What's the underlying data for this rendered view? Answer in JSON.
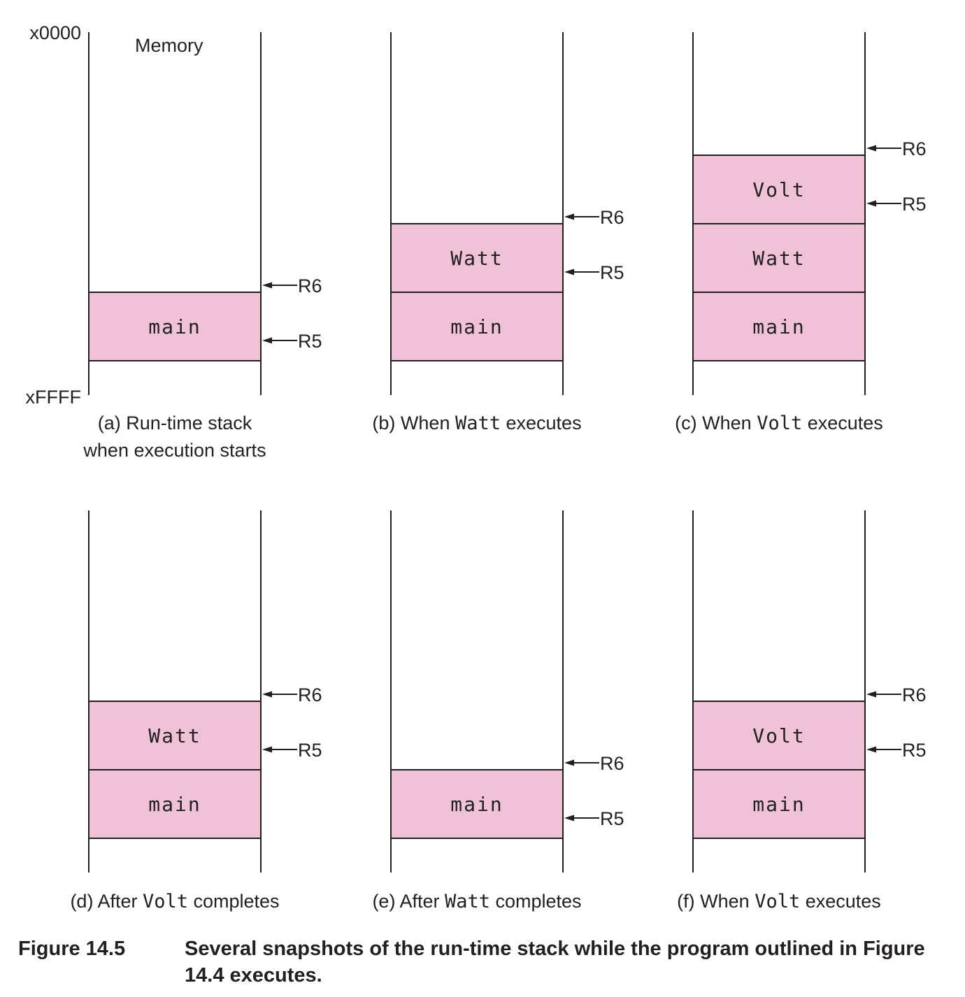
{
  "axis": {
    "top_address": "x0000",
    "bottom_address": "xFFFF",
    "memory_label": "Memory"
  },
  "colors": {
    "frame_fill": "#f0c2d8",
    "stroke": "#231f20"
  },
  "registers": {
    "stack_pointer": "R6",
    "frame_pointer": "R5"
  },
  "snapshots": [
    {
      "id": "a",
      "caption_lines": [
        [
          {
            "text": "(a) Run-time stack",
            "mono": false
          }
        ],
        [
          {
            "text": "when execution starts",
            "mono": false
          }
        ]
      ],
      "frames_bottom_to_top": [
        "main"
      ]
    },
    {
      "id": "b",
      "caption_lines": [
        [
          {
            "text": "(b) When ",
            "mono": false
          },
          {
            "text": "Watt",
            "mono": true
          },
          {
            "text": " executes",
            "mono": false
          }
        ]
      ],
      "frames_bottom_to_top": [
        "main",
        "Watt"
      ]
    },
    {
      "id": "c",
      "caption_lines": [
        [
          {
            "text": "(c) When ",
            "mono": false
          },
          {
            "text": "Volt",
            "mono": true
          },
          {
            "text": " executes",
            "mono": false
          }
        ]
      ],
      "frames_bottom_to_top": [
        "main",
        "Watt",
        "Volt"
      ]
    },
    {
      "id": "d",
      "caption_lines": [
        [
          {
            "text": "(d) After ",
            "mono": false
          },
          {
            "text": "Volt",
            "mono": true
          },
          {
            "text": " completes",
            "mono": false
          }
        ]
      ],
      "frames_bottom_to_top": [
        "main",
        "Watt"
      ]
    },
    {
      "id": "e",
      "caption_lines": [
        [
          {
            "text": "(e) After ",
            "mono": false
          },
          {
            "text": "Watt",
            "mono": true
          },
          {
            "text": " completes",
            "mono": false
          }
        ]
      ],
      "frames_bottom_to_top": [
        "main"
      ]
    },
    {
      "id": "f",
      "caption_lines": [
        [
          {
            "text": "(f) When ",
            "mono": false
          },
          {
            "text": "Volt",
            "mono": true
          },
          {
            "text": " executes",
            "mono": false
          }
        ]
      ],
      "frames_bottom_to_top": [
        "main",
        "Volt"
      ]
    }
  ],
  "figure": {
    "number": "Figure 14.5",
    "caption": "Several snapshots of the run-time stack while the program outlined in Figure 14.4 executes."
  }
}
